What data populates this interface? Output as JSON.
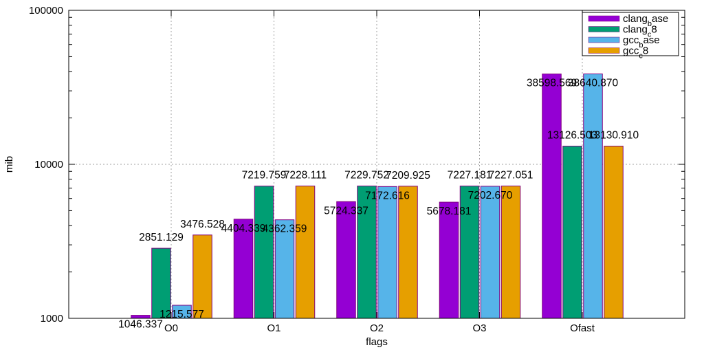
{
  "chart_data": {
    "type": "bar",
    "xlabel": "flags",
    "ylabel": "mib",
    "yscale": "log",
    "ylim": [
      1000,
      100000
    ],
    "yticks": [
      "1000",
      "10000",
      "100000"
    ],
    "grid": true,
    "legend_position": "top-right",
    "categories": [
      "O0",
      "O1",
      "O2",
      "O3",
      "Ofast"
    ],
    "series": [
      {
        "name_base": "clang",
        "name_sub": "b",
        "name_rest": "ase",
        "color": "#9400d3",
        "values": [
          1046.337,
          4404.339,
          5724.337,
          5678.181,
          38598.569
        ],
        "labels": [
          "1046.337",
          "4404.339",
          "5724.337",
          "5678.181",
          "38598.569"
        ]
      },
      {
        "name_base": "clang",
        "name_sub": "c",
        "name_rest": "8",
        "color": "#009e73",
        "values": [
          2851.129,
          7219.759,
          7229.752,
          7227.181,
          13126.503
        ],
        "labels": [
          "2851.129",
          "7219.759",
          "7229.752",
          "7227.181",
          "13126.503"
        ]
      },
      {
        "name_base": "gcc",
        "name_sub": "b",
        "name_rest": "ase",
        "color": "#56b4e9",
        "values": [
          1215.577,
          4362.359,
          7172.616,
          7202.67,
          38640.87
        ],
        "labels": [
          "1215.577",
          "4362.359",
          "7172.616",
          "7202.670",
          "38640.870"
        ]
      },
      {
        "name_base": "gcc",
        "name_sub": "c",
        "name_rest": "8",
        "color": "#e69f00",
        "values": [
          3476.528,
          7228.111,
          7209.925,
          7227.051,
          13130.91
        ],
        "labels": [
          "3476.528",
          "7228.111",
          "7209.925",
          "7227.051",
          "13130.910"
        ]
      }
    ]
  }
}
